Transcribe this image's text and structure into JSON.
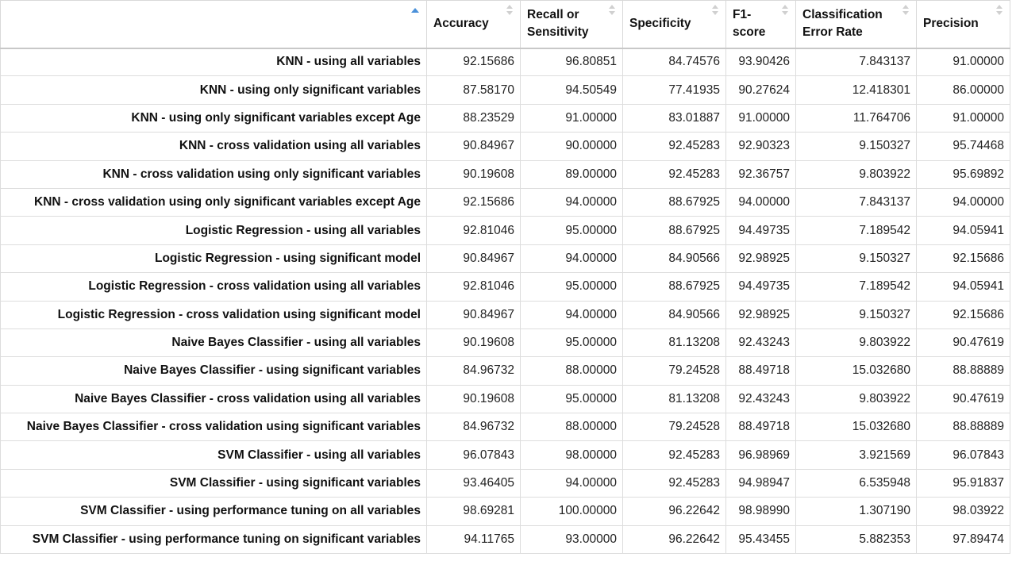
{
  "table": {
    "columns": [
      {
        "label": "",
        "sort": "ascending"
      },
      {
        "label": "Accuracy",
        "sort": "none"
      },
      {
        "label": "Recall or Sensitivity",
        "sort": "none"
      },
      {
        "label": "Specificity",
        "sort": "none"
      },
      {
        "label": "F1-score",
        "sort": "none"
      },
      {
        "label": "Classification Error Rate",
        "sort": "none"
      },
      {
        "label": "Precision",
        "sort": "none"
      }
    ],
    "rows": [
      {
        "name": "KNN - using all variables",
        "values": [
          "92.15686",
          "96.80851",
          "84.74576",
          "93.90426",
          "7.843137",
          "91.00000"
        ]
      },
      {
        "name": "KNN - using only significant variables",
        "values": [
          "87.58170",
          "94.50549",
          "77.41935",
          "90.27624",
          "12.418301",
          "86.00000"
        ]
      },
      {
        "name": "KNN - using only significant variables except Age",
        "values": [
          "88.23529",
          "91.00000",
          "83.01887",
          "91.00000",
          "11.764706",
          "91.00000"
        ]
      },
      {
        "name": "KNN - cross validation using all variables",
        "values": [
          "90.84967",
          "90.00000",
          "92.45283",
          "92.90323",
          "9.150327",
          "95.74468"
        ]
      },
      {
        "name": "KNN - cross validation using only significant variables",
        "values": [
          "90.19608",
          "89.00000",
          "92.45283",
          "92.36757",
          "9.803922",
          "95.69892"
        ]
      },
      {
        "name": "KNN - cross validation using only significant variables except Age",
        "values": [
          "92.15686",
          "94.00000",
          "88.67925",
          "94.00000",
          "7.843137",
          "94.00000"
        ]
      },
      {
        "name": "Logistic Regression - using all variables",
        "values": [
          "92.81046",
          "95.00000",
          "88.67925",
          "94.49735",
          "7.189542",
          "94.05941"
        ]
      },
      {
        "name": "Logistic Regression - using significant model",
        "values": [
          "90.84967",
          "94.00000",
          "84.90566",
          "92.98925",
          "9.150327",
          "92.15686"
        ]
      },
      {
        "name": "Logistic Regression - cross validation using all variables",
        "values": [
          "92.81046",
          "95.00000",
          "88.67925",
          "94.49735",
          "7.189542",
          "94.05941"
        ]
      },
      {
        "name": "Logistic Regression - cross validation using significant model",
        "values": [
          "90.84967",
          "94.00000",
          "84.90566",
          "92.98925",
          "9.150327",
          "92.15686"
        ]
      },
      {
        "name": "Naive Bayes Classifier - using all variables",
        "values": [
          "90.19608",
          "95.00000",
          "81.13208",
          "92.43243",
          "9.803922",
          "90.47619"
        ]
      },
      {
        "name": "Naive Bayes Classifier - using significant variables",
        "values": [
          "84.96732",
          "88.00000",
          "79.24528",
          "88.49718",
          "15.032680",
          "88.88889"
        ]
      },
      {
        "name": "Naive Bayes Classifier - cross validation using all variables",
        "values": [
          "90.19608",
          "95.00000",
          "81.13208",
          "92.43243",
          "9.803922",
          "90.47619"
        ]
      },
      {
        "name": "Naive Bayes Classifier - cross validation using significant variables",
        "values": [
          "84.96732",
          "88.00000",
          "79.24528",
          "88.49718",
          "15.032680",
          "88.88889"
        ]
      },
      {
        "name": "SVM Classifier - using all variables",
        "values": [
          "96.07843",
          "98.00000",
          "92.45283",
          "96.98969",
          "3.921569",
          "96.07843"
        ]
      },
      {
        "name": "SVM Classifier - using significant variables",
        "values": [
          "93.46405",
          "94.00000",
          "92.45283",
          "94.98947",
          "6.535948",
          "95.91837"
        ]
      },
      {
        "name": "SVM Classifier - using performance tuning on all variables",
        "values": [
          "98.69281",
          "100.00000",
          "96.22642",
          "98.98990",
          "1.307190",
          "98.03922"
        ]
      },
      {
        "name": "SVM Classifier - using performance tuning on significant variables",
        "values": [
          "94.11765",
          "93.00000",
          "96.22642",
          "95.43455",
          "5.882353",
          "97.89474"
        ]
      }
    ]
  }
}
